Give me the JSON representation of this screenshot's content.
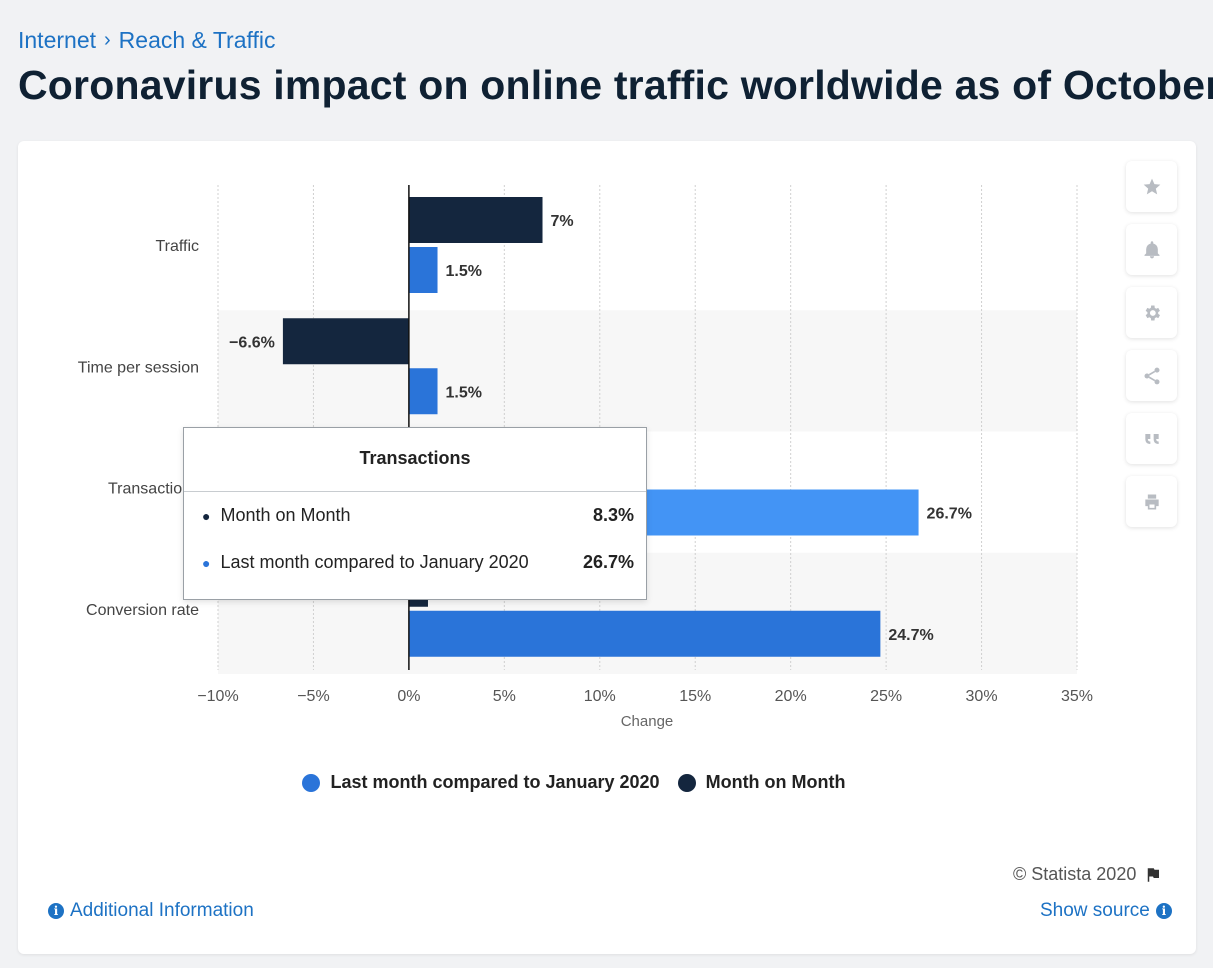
{
  "breadcrumb": {
    "items": [
      "Internet",
      "Reach & Traffic"
    ],
    "separator": "›"
  },
  "page": {
    "title": "Coronavirus impact on online traffic worldwide as of October"
  },
  "colors": {
    "series_last_month": "#2a74d9",
    "series_transactions_highlight": "#4394f5",
    "series_month_on_month": "#14263e",
    "band": "#f7f7f7"
  },
  "chart_data": {
    "type": "bar",
    "orientation": "horizontal",
    "categories": [
      "Traffic",
      "Time per session",
      "Transactions",
      "Conversion rate"
    ],
    "series": [
      {
        "name": "Month on Month",
        "values": [
          7,
          -6.6,
          8.3,
          1
        ],
        "labels": [
          "7%",
          "−6.6%",
          "8.3%",
          ""
        ]
      },
      {
        "name": "Last month compared to January 2020",
        "values": [
          1.5,
          1.5,
          26.7,
          24.7
        ],
        "labels": [
          "1.5%",
          "1.5%",
          "26.7%",
          "24.7%"
        ]
      }
    ],
    "xlabel": "Change",
    "xlim": [
      -10,
      35
    ],
    "xticks": [
      "−10%",
      "−5%",
      "0%",
      "5%",
      "10%",
      "15%",
      "20%",
      "25%",
      "30%",
      "35%"
    ],
    "xtick_values": [
      -10,
      -5,
      0,
      5,
      10,
      15,
      20,
      25,
      30,
      35
    ],
    "grid": true,
    "legend_position": "bottom"
  },
  "legend": {
    "items": [
      "Last month compared to January 2020",
      "Month on Month"
    ]
  },
  "tooltip": {
    "title": "Transactions",
    "rows": [
      {
        "label": "Month on Month",
        "value": "8.3%"
      },
      {
        "label": "Last month compared to January 2020",
        "value": "26.7%"
      }
    ]
  },
  "toolbar": {
    "icons": [
      "star-icon",
      "bell-icon",
      "gear-icon",
      "share-icon",
      "quote-icon",
      "print-icon"
    ]
  },
  "footer": {
    "copyright": "© Statista 2020",
    "additional_info": "Additional Information",
    "show_source": "Show source"
  }
}
